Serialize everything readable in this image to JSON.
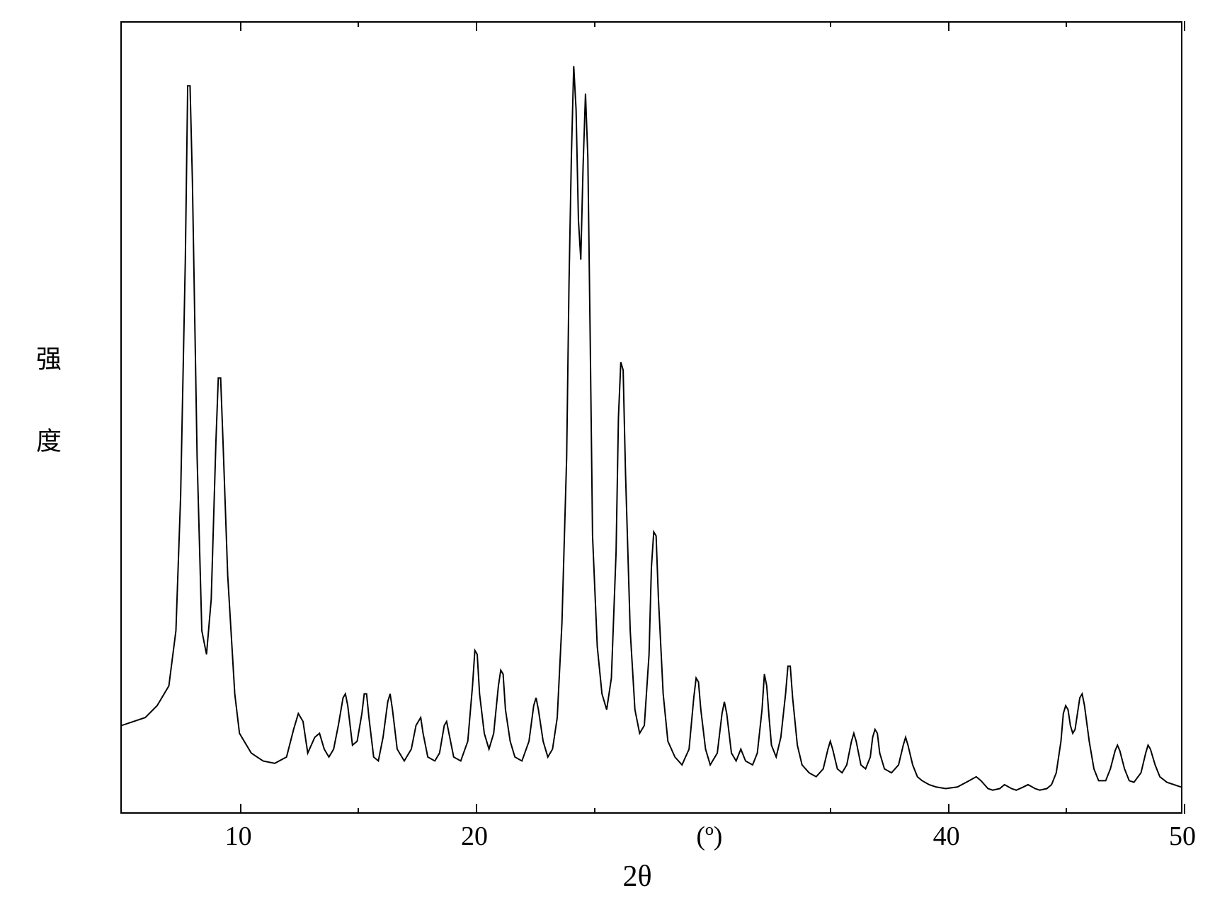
{
  "chart": {
    "type": "line",
    "background_color": "#ffffff",
    "line_color": "#000000",
    "border_color": "#000000",
    "line_width": 2,
    "ylabel": "强 度",
    "xlabel": "2θ",
    "x_unit": "(º)",
    "label_fontsize": 40,
    "tick_fontsize": 38,
    "xlim": [
      5,
      50
    ],
    "xtick_major": [
      10,
      20,
      40,
      50
    ],
    "xtick_minor": [
      15,
      25,
      35,
      45
    ],
    "x_unit_position": 30,
    "y_axis_ticks_visible": false,
    "points": [
      [
        5.0,
        160
      ],
      [
        5.5,
        165
      ],
      [
        6.0,
        170
      ],
      [
        6.5,
        185
      ],
      [
        7.0,
        210
      ],
      [
        7.3,
        280
      ],
      [
        7.5,
        450
      ],
      [
        7.7,
        750
      ],
      [
        7.8,
        970
      ],
      [
        7.9,
        970
      ],
      [
        8.0,
        850
      ],
      [
        8.2,
        500
      ],
      [
        8.4,
        280
      ],
      [
        8.6,
        250
      ],
      [
        8.8,
        320
      ],
      [
        9.0,
        520
      ],
      [
        9.1,
        600
      ],
      [
        9.2,
        600
      ],
      [
        9.3,
        520
      ],
      [
        9.5,
        350
      ],
      [
        9.8,
        200
      ],
      [
        10.0,
        150
      ],
      [
        10.5,
        125
      ],
      [
        11.0,
        115
      ],
      [
        11.5,
        112
      ],
      [
        12.0,
        120
      ],
      [
        12.3,
        155
      ],
      [
        12.5,
        175
      ],
      [
        12.7,
        165
      ],
      [
        12.9,
        125
      ],
      [
        13.2,
        145
      ],
      [
        13.4,
        150
      ],
      [
        13.6,
        130
      ],
      [
        13.8,
        120
      ],
      [
        14.0,
        130
      ],
      [
        14.2,
        160
      ],
      [
        14.4,
        195
      ],
      [
        14.5,
        200
      ],
      [
        14.6,
        185
      ],
      [
        14.8,
        135
      ],
      [
        15.0,
        140
      ],
      [
        15.2,
        175
      ],
      [
        15.3,
        200
      ],
      [
        15.4,
        200
      ],
      [
        15.5,
        170
      ],
      [
        15.7,
        120
      ],
      [
        15.9,
        115
      ],
      [
        16.1,
        145
      ],
      [
        16.3,
        190
      ],
      [
        16.4,
        200
      ],
      [
        16.5,
        180
      ],
      [
        16.7,
        130
      ],
      [
        17.0,
        115
      ],
      [
        17.3,
        130
      ],
      [
        17.5,
        160
      ],
      [
        17.7,
        170
      ],
      [
        17.8,
        150
      ],
      [
        18.0,
        120
      ],
      [
        18.3,
        115
      ],
      [
        18.5,
        125
      ],
      [
        18.7,
        160
      ],
      [
        18.8,
        165
      ],
      [
        18.9,
        150
      ],
      [
        19.1,
        120
      ],
      [
        19.4,
        115
      ],
      [
        19.7,
        140
      ],
      [
        19.9,
        210
      ],
      [
        20.0,
        255
      ],
      [
        20.1,
        250
      ],
      [
        20.2,
        200
      ],
      [
        20.4,
        150
      ],
      [
        20.6,
        130
      ],
      [
        20.8,
        150
      ],
      [
        21.0,
        210
      ],
      [
        21.1,
        230
      ],
      [
        21.2,
        225
      ],
      [
        21.3,
        180
      ],
      [
        21.5,
        140
      ],
      [
        21.7,
        120
      ],
      [
        22.0,
        115
      ],
      [
        22.3,
        140
      ],
      [
        22.5,
        185
      ],
      [
        22.6,
        195
      ],
      [
        22.7,
        180
      ],
      [
        22.9,
        140
      ],
      [
        23.1,
        120
      ],
      [
        23.3,
        130
      ],
      [
        23.5,
        170
      ],
      [
        23.7,
        290
      ],
      [
        23.9,
        500
      ],
      [
        24.0,
        720
      ],
      [
        24.1,
        880
      ],
      [
        24.2,
        995
      ],
      [
        24.3,
        940
      ],
      [
        24.4,
        800
      ],
      [
        24.5,
        750
      ],
      [
        24.6,
        870
      ],
      [
        24.7,
        960
      ],
      [
        24.8,
        880
      ],
      [
        24.9,
        650
      ],
      [
        25.0,
        400
      ],
      [
        25.2,
        260
      ],
      [
        25.4,
        200
      ],
      [
        25.6,
        180
      ],
      [
        25.8,
        220
      ],
      [
        26.0,
        380
      ],
      [
        26.1,
        550
      ],
      [
        26.2,
        620
      ],
      [
        26.3,
        610
      ],
      [
        26.4,
        480
      ],
      [
        26.6,
        280
      ],
      [
        26.8,
        180
      ],
      [
        27.0,
        150
      ],
      [
        27.2,
        160
      ],
      [
        27.4,
        250
      ],
      [
        27.5,
        360
      ],
      [
        27.6,
        405
      ],
      [
        27.7,
        400
      ],
      [
        27.8,
        320
      ],
      [
        28.0,
        200
      ],
      [
        28.2,
        140
      ],
      [
        28.5,
        120
      ],
      [
        28.8,
        110
      ],
      [
        29.1,
        130
      ],
      [
        29.3,
        195
      ],
      [
        29.4,
        220
      ],
      [
        29.5,
        215
      ],
      [
        29.6,
        180
      ],
      [
        29.8,
        130
      ],
      [
        30.0,
        110
      ],
      [
        30.3,
        125
      ],
      [
        30.5,
        175
      ],
      [
        30.6,
        190
      ],
      [
        30.7,
        175
      ],
      [
        30.9,
        125
      ],
      [
        31.1,
        115
      ],
      [
        31.3,
        130
      ],
      [
        31.5,
        115
      ],
      [
        31.8,
        110
      ],
      [
        32.0,
        125
      ],
      [
        32.2,
        180
      ],
      [
        32.3,
        225
      ],
      [
        32.4,
        210
      ],
      [
        32.5,
        170
      ],
      [
        32.6,
        135
      ],
      [
        32.8,
        120
      ],
      [
        33.0,
        145
      ],
      [
        33.2,
        200
      ],
      [
        33.3,
        235
      ],
      [
        33.4,
        235
      ],
      [
        33.5,
        195
      ],
      [
        33.7,
        135
      ],
      [
        33.9,
        110
      ],
      [
        34.2,
        100
      ],
      [
        34.5,
        95
      ],
      [
        34.8,
        105
      ],
      [
        35.0,
        130
      ],
      [
        35.1,
        140
      ],
      [
        35.2,
        130
      ],
      [
        35.4,
        105
      ],
      [
        35.6,
        100
      ],
      [
        35.8,
        110
      ],
      [
        36.0,
        140
      ],
      [
        36.1,
        150
      ],
      [
        36.2,
        140
      ],
      [
        36.4,
        110
      ],
      [
        36.6,
        105
      ],
      [
        36.8,
        120
      ],
      [
        36.9,
        145
      ],
      [
        37.0,
        155
      ],
      [
        37.1,
        150
      ],
      [
        37.2,
        125
      ],
      [
        37.4,
        105
      ],
      [
        37.7,
        100
      ],
      [
        38.0,
        110
      ],
      [
        38.2,
        135
      ],
      [
        38.3,
        145
      ],
      [
        38.4,
        135
      ],
      [
        38.6,
        110
      ],
      [
        38.8,
        95
      ],
      [
        39.0,
        90
      ],
      [
        39.3,
        85
      ],
      [
        39.6,
        82
      ],
      [
        40.0,
        80
      ],
      [
        40.5,
        82
      ],
      [
        41.0,
        90
      ],
      [
        41.3,
        95
      ],
      [
        41.5,
        90
      ],
      [
        41.8,
        80
      ],
      [
        42.0,
        78
      ],
      [
        42.3,
        80
      ],
      [
        42.5,
        85
      ],
      [
        42.8,
        80
      ],
      [
        43.0,
        78
      ],
      [
        43.3,
        82
      ],
      [
        43.5,
        85
      ],
      [
        43.8,
        80
      ],
      [
        44.0,
        78
      ],
      [
        44.3,
        80
      ],
      [
        44.5,
        85
      ],
      [
        44.7,
        100
      ],
      [
        44.9,
        140
      ],
      [
        45.0,
        175
      ],
      [
        45.1,
        185
      ],
      [
        45.2,
        180
      ],
      [
        45.3,
        160
      ],
      [
        45.4,
        150
      ],
      [
        45.5,
        155
      ],
      [
        45.6,
        175
      ],
      [
        45.7,
        195
      ],
      [
        45.8,
        200
      ],
      [
        45.9,
        185
      ],
      [
        46.1,
        140
      ],
      [
        46.3,
        105
      ],
      [
        46.5,
        90
      ],
      [
        46.8,
        90
      ],
      [
        47.0,
        105
      ],
      [
        47.2,
        128
      ],
      [
        47.3,
        135
      ],
      [
        47.4,
        128
      ],
      [
        47.6,
        105
      ],
      [
        47.8,
        90
      ],
      [
        48.0,
        88
      ],
      [
        48.3,
        100
      ],
      [
        48.5,
        125
      ],
      [
        48.6,
        135
      ],
      [
        48.7,
        130
      ],
      [
        48.9,
        110
      ],
      [
        49.1,
        95
      ],
      [
        49.4,
        88
      ],
      [
        49.7,
        85
      ],
      [
        50.0,
        82
      ]
    ],
    "y_display_min": 50,
    "y_display_max": 1050
  }
}
